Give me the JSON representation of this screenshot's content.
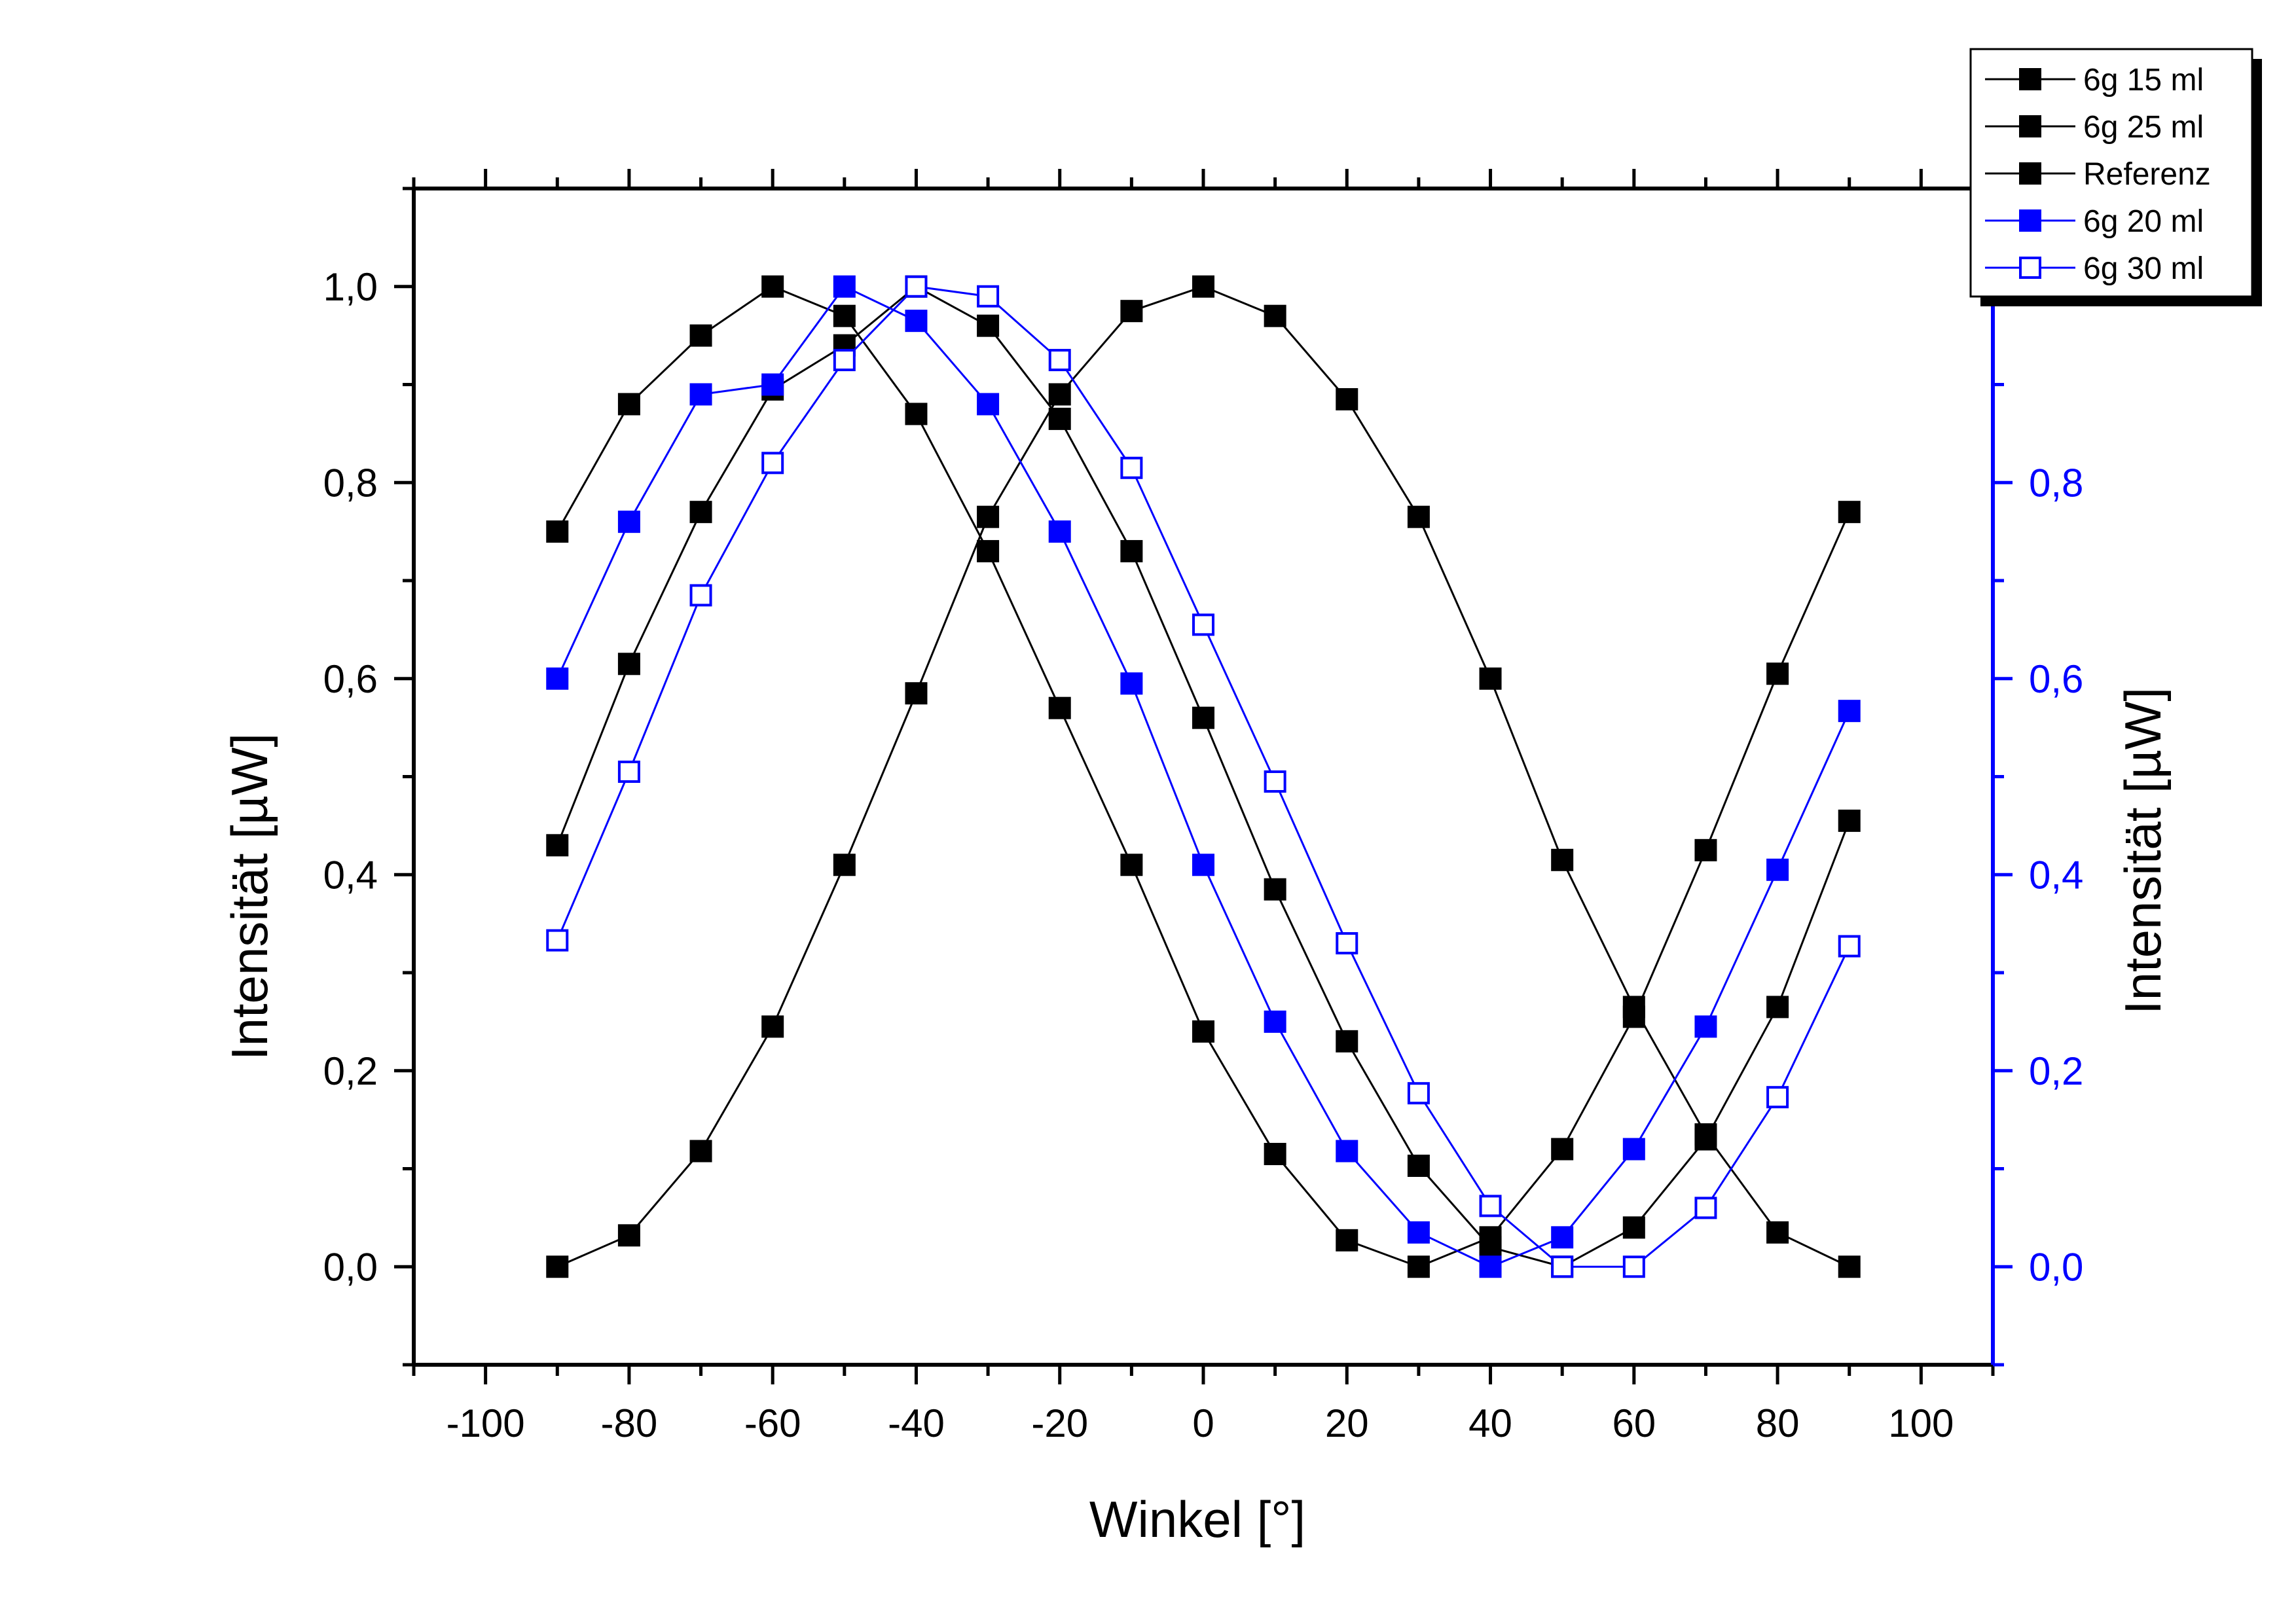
{
  "chart_data": {
    "type": "scatter",
    "xlabel": "Winkel [°]",
    "ylabel_left": "Intensität [µW]",
    "ylabel_right": "Intensität [µW]",
    "xlim": [
      -110,
      110
    ],
    "ylim": [
      -0.1,
      1.1
    ],
    "x_ticks": [
      -100,
      -80,
      -60,
      -40,
      -20,
      0,
      20,
      40,
      60,
      80,
      100
    ],
    "x_tick_labels": [
      "-100",
      "-80",
      "-60",
      "-40",
      "-20",
      "0",
      "20",
      "40",
      "60",
      "80",
      "100"
    ],
    "y_ticks": [
      0,
      0.2,
      0.4,
      0.6,
      0.8,
      1.0
    ],
    "y_tick_labels": [
      "0,0",
      "0,2",
      "0,4",
      "0,6",
      "0,8",
      "1,0"
    ],
    "grid": false,
    "legend_position": "top-right",
    "colors": {
      "black": "#000000",
      "blue": "#0000ff"
    },
    "x": [
      -90,
      -80,
      -70,
      -60,
      -50,
      -40,
      -30,
      -20,
      -10,
      0,
      10,
      20,
      30,
      40,
      50,
      60,
      70,
      80,
      90
    ],
    "series": [
      {
        "name": "6g 15 ml",
        "axis": "left",
        "color": "#000000",
        "marker": "filled-square",
        "values": [
          0.75,
          0.88,
          0.95,
          1.0,
          0.97,
          0.87,
          0.73,
          0.57,
          0.41,
          0.24,
          0.115,
          0.027,
          0.0,
          0.03,
          0.12,
          0.255,
          0.425,
          0.605,
          0.77
        ]
      },
      {
        "name": "6g 25 ml",
        "axis": "left",
        "color": "#000000",
        "marker": "filled-square",
        "values": [
          0.43,
          0.615,
          0.77,
          0.895,
          0.94,
          1.0,
          0.96,
          0.865,
          0.73,
          0.56,
          0.385,
          0.23,
          0.103,
          0.02,
          0.0,
          0.04,
          0.13,
          0.265,
          0.455
        ]
      },
      {
        "name": "Referenz",
        "axis": "left",
        "color": "#000000",
        "marker": "filled-square",
        "values": [
          0.0,
          0.032,
          0.118,
          0.245,
          0.41,
          0.585,
          0.765,
          0.89,
          0.975,
          1.0,
          0.97,
          0.885,
          0.765,
          0.6,
          0.415,
          0.265,
          0.135,
          0.035,
          0.0
        ]
      },
      {
        "name": "6g 20 ml",
        "axis": "right",
        "color": "#0000ff",
        "marker": "filled-square",
        "values": [
          0.6,
          0.76,
          0.89,
          0.9,
          1.0,
          0.965,
          0.88,
          0.75,
          0.595,
          0.41,
          0.25,
          0.118,
          0.035,
          0.0,
          0.03,
          0.12,
          0.245,
          0.405,
          0.567
        ]
      },
      {
        "name": "6g 30 ml",
        "axis": "right",
        "color": "#0000ff",
        "marker": "open-square",
        "values": [
          0.333,
          0.505,
          0.685,
          0.82,
          0.925,
          1.0,
          0.99,
          0.925,
          0.815,
          0.655,
          0.495,
          0.33,
          0.177,
          0.062,
          0.0,
          0.0,
          0.06,
          0.173,
          0.327
        ]
      }
    ]
  }
}
